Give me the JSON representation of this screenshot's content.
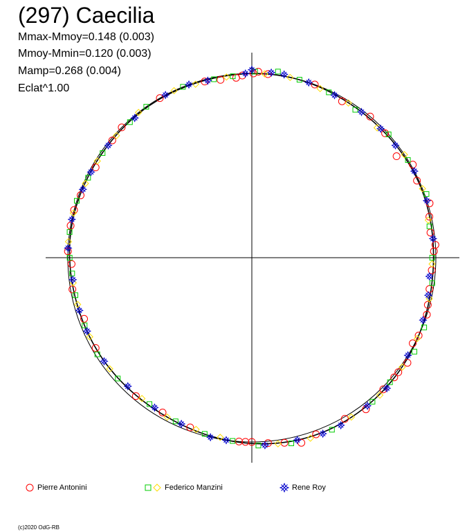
{
  "header": {
    "title": "(297) Caecilia",
    "stats": [
      "Mmax-Mmoy=0.148 (0.003)",
      "Mmoy-Mmin=0.120 (0.003)",
      "Mamp=0.268 (0.004)",
      "Eclat^1.00"
    ]
  },
  "legend": [
    {
      "label": "Pierre Antonini",
      "marker": "circle",
      "color": "#ff0000"
    },
    {
      "label": "Federico Manzini",
      "marker": "square-diamond",
      "color": "#00cc00",
      "color2": "#ffff00"
    },
    {
      "label": "Rene Roy",
      "marker": "star",
      "color": "#0000cc"
    }
  ],
  "footer": {
    "copyright": "(c)2020 OdG-RB"
  },
  "chart_data": {
    "type": "scatter",
    "projection": "polar",
    "title": "(297) Caecilia",
    "reference_radius": 1.0,
    "axes": "cross",
    "series": [
      {
        "name": "Pierre Antonini",
        "marker": "circle",
        "color": "#ff0000",
        "angles_deg": [
          2,
          20,
          40,
          55,
          65,
          73,
          82,
          86,
          88,
          94,
          100,
          108,
          115,
          124,
          128,
          135,
          150,
          165,
          170,
          175,
          180,
          182,
          184,
          200,
          210,
          220,
          240,
          250,
          260,
          268,
          272,
          280,
          285,
          290,
          300,
          310,
          315,
          330,
          345,
          350,
          355,
          357,
          0.5,
          5,
          30,
          47,
          60,
          77,
          105,
          118,
          130,
          143,
          160
        ],
        "r": [
          1.01,
          1.0,
          1.0,
          0.96,
          0.99,
          1.01,
          0.98,
          1.0,
          0.99,
          0.98,
          0.98,
          1.0,
          1.0,
          1.02,
          1.01,
          1.01,
          1.01,
          1.04,
          1.02,
          1.01,
          1.0,
          1.0,
          1.0,
          0.98,
          0.97,
          0.98,
          0.98,
          0.97,
          0.99,
          0.98,
          1.0,
          1.0,
          1.0,
          0.99,
          0.98,
          0.99,
          1.0,
          1.0,
          0.99,
          0.98,
          0.98,
          0.99,
          1.0,
          1.0,
          0.98,
          0.99,
          1.01,
          0.99,
          0.99,
          0.99,
          1.01,
          1.03,
          1.02
        ]
      },
      {
        "name": "Federico Manzini",
        "marker": "square",
        "color": "#00cc00",
        "angles_deg": [
          1,
          8,
          15,
          25,
          35,
          48,
          58,
          70,
          80,
          90,
          98,
          112,
          120,
          132,
          140,
          155,
          168,
          178,
          186,
          195,
          205,
          215,
          228,
          238,
          248,
          258,
          265,
          270,
          278,
          288,
          296,
          305,
          318,
          325,
          338,
          348,
          354
        ],
        "r": [
          1.01,
          1.02,
          1.0,
          0.99,
          0.98,
          1.0,
          1.0,
          1.01,
          0.98,
          0.98,
          0.99,
          1.01,
          1.02,
          1.01,
          1.02,
          1.03,
          1.03,
          1.02,
          1.0,
          0.99,
          0.98,
          0.97,
          0.98,
          0.99,
          0.98,
          0.98,
          0.98,
          0.99,
          1.0,
          1.0,
          0.99,
          0.99,
          0.99,
          1.0,
          1.0,
          0.99,
          0.99
        ]
      },
      {
        "name": "Federico Manzini",
        "marker": "diamond",
        "color": "#ffff00",
        "angles_deg": [
          4,
          12,
          22,
          32,
          44,
          56,
          68,
          78,
          92,
          103,
          116,
          126,
          137,
          148,
          162,
          172,
          190,
          198,
          208,
          218,
          232,
          244,
          255,
          262,
          275,
          284,
          294,
          302,
          312,
          322,
          335,
          342,
          352
        ],
        "r": [
          1.0,
          1.0,
          0.99,
          0.99,
          0.98,
          1.0,
          1.0,
          0.98,
          0.98,
          0.99,
          1.0,
          1.01,
          1.02,
          1.02,
          1.03,
          1.02,
          0.99,
          0.98,
          0.98,
          0.97,
          0.98,
          0.98,
          0.98,
          0.98,
          1.0,
          1.0,
          0.99,
          0.99,
          0.99,
          1.0,
          1.0,
          0.99,
          0.99
        ]
      },
      {
        "name": "Rene Roy",
        "marker": "star",
        "color": "#0000cc",
        "angles_deg": [
          0,
          6,
          10,
          18,
          27,
          37,
          45,
          52,
          62,
          72,
          84,
          96,
          102,
          110,
          122,
          134,
          142,
          152,
          158,
          166,
          176,
          188,
          193,
          203,
          213,
          224,
          235,
          246,
          253,
          263,
          273,
          282,
          292,
          298,
          308,
          320,
          332,
          340,
          346,
          358
        ],
        "r": [
          1.02,
          1.01,
          1.01,
          1.0,
          0.99,
          0.99,
          0.99,
          0.99,
          1.0,
          1.0,
          0.99,
          0.97,
          0.98,
          0.99,
          1.0,
          1.02,
          1.02,
          1.03,
          1.03,
          1.02,
          1.02,
          1.0,
          1.0,
          0.98,
          0.97,
          0.97,
          0.98,
          0.98,
          0.98,
          0.98,
          1.0,
          1.0,
          0.99,
          0.99,
          0.99,
          0.99,
          1.0,
          1.0,
          0.99,
          1.0
        ]
      }
    ]
  }
}
